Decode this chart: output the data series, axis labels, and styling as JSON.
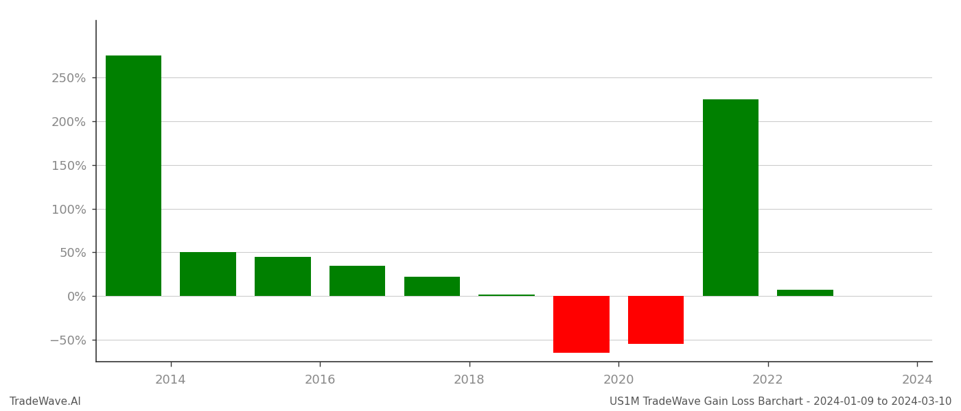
{
  "years": [
    2013.5,
    2014.5,
    2015.5,
    2016.5,
    2017.5,
    2018.5,
    2019.5,
    2020.5,
    2021.5,
    2022.5
  ],
  "values": [
    2.75,
    0.5,
    0.45,
    0.35,
    0.22,
    0.02,
    -0.65,
    -0.55,
    2.25,
    0.07
  ],
  "colors": [
    "#008000",
    "#008000",
    "#008000",
    "#008000",
    "#008000",
    "#008000",
    "#ff0000",
    "#ff0000",
    "#008000",
    "#008000"
  ],
  "footer_left": "TradeWave.AI",
  "footer_right": "US1M TradeWave Gain Loss Barchart - 2024-01-09 to 2024-03-10",
  "ylim_min": -0.75,
  "ylim_max": 3.15,
  "yticks": [
    -0.5,
    0.0,
    0.5,
    1.0,
    1.5,
    2.0,
    2.5
  ],
  "xticks": [
    2014,
    2016,
    2018,
    2020,
    2022,
    2024
  ],
  "xlim_min": 2013.0,
  "xlim_max": 2024.2,
  "bar_width": 0.75,
  "background_color": "#ffffff",
  "grid_color": "#cccccc",
  "tick_label_color": "#888888",
  "footer_fontsize": 11,
  "tick_fontsize": 13,
  "spine_color": "#333333"
}
